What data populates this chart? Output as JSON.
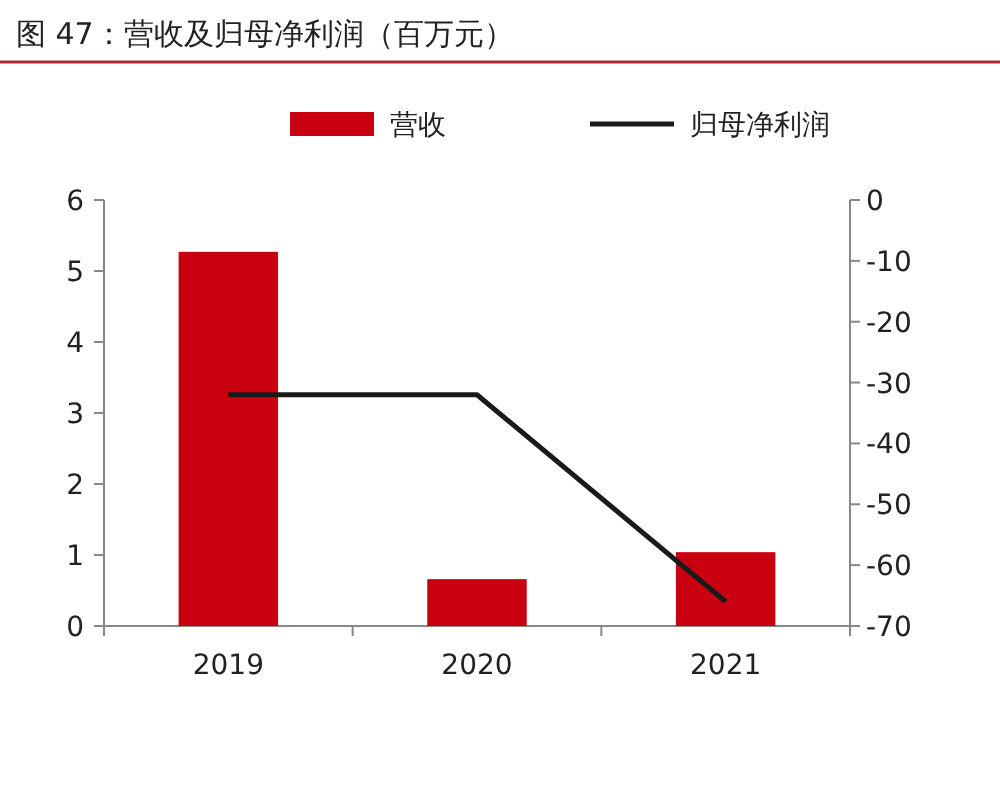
{
  "chart_data": {
    "type": "bar",
    "title": "图 47：营收及归母净利润（百万元）",
    "categories": [
      "2019",
      "2020",
      "2021"
    ],
    "series": [
      {
        "name": "营收",
        "color": "#c8000f",
        "values": [
          5.27,
          0.66,
          1.04
        ]
      },
      {
        "name": "归母净利润",
        "type": "line",
        "axis": "y2",
        "color": "#1a1a1a",
        "values": [
          -32,
          -32,
          -66
        ]
      }
    ],
    "ylim": [
      0,
      6
    ],
    "yticks": [
      0,
      1,
      2,
      3,
      4,
      5,
      6
    ],
    "y2lim": [
      -70,
      0
    ],
    "y2ticks": [
      0,
      -10,
      -20,
      -30,
      -40,
      -50,
      -60,
      -70
    ],
    "legend": "top",
    "grid": false
  }
}
